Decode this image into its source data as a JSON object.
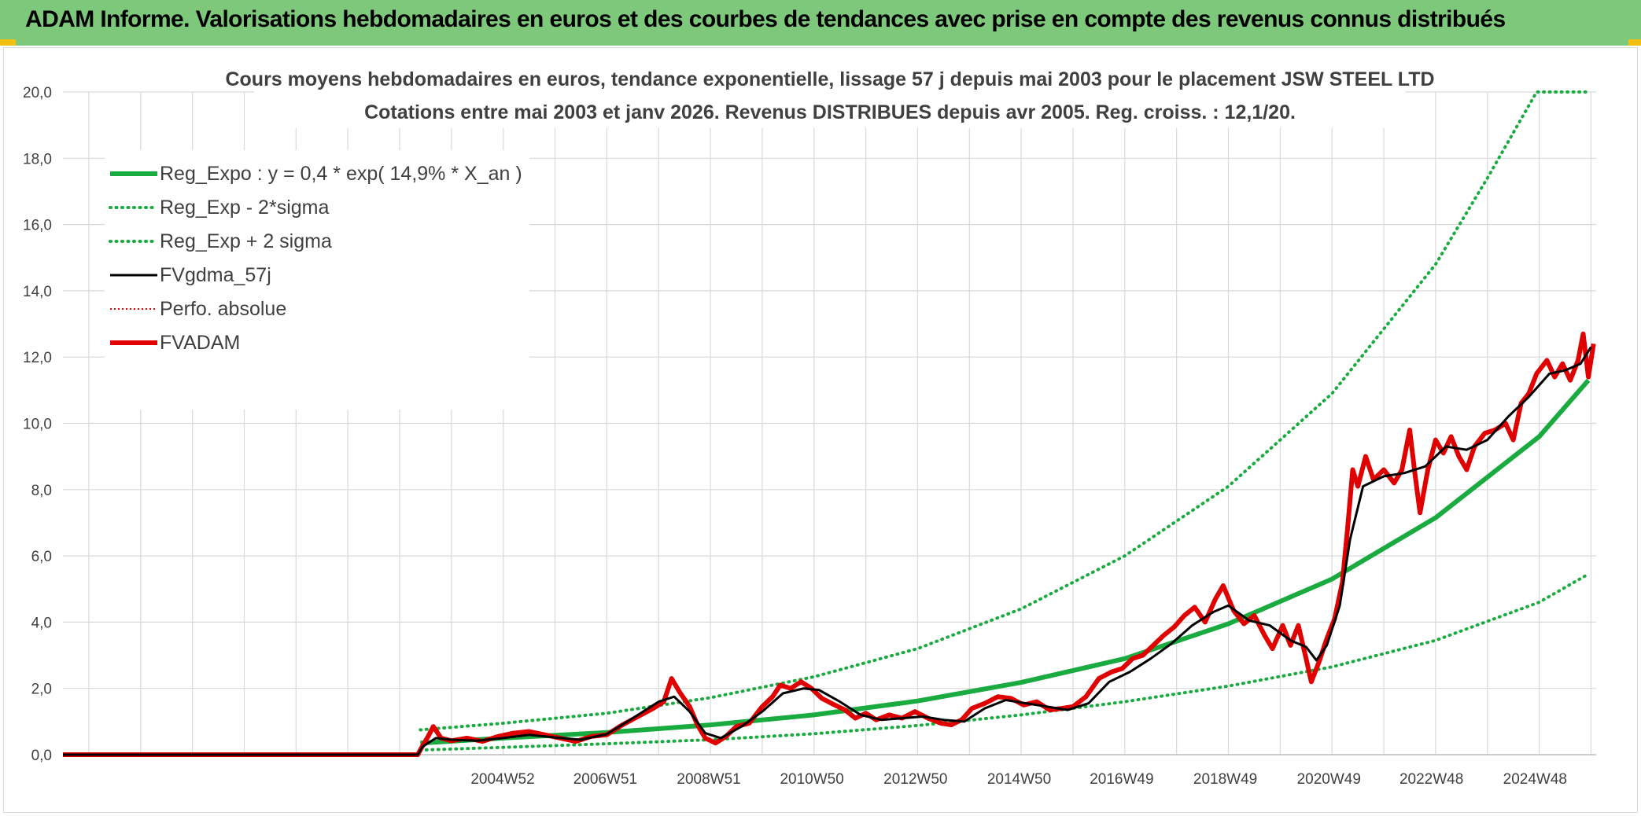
{
  "banner": {
    "title": "ADAM Informe. Valorisations hebdomadaires en euros et des courbes de tendances avec prise en compte des revenus connus distribués",
    "background": "#7dc87a"
  },
  "chart_data": {
    "type": "line",
    "title": [
      "Cours moyens hebdomadaires en euros, tendance exponentielle, lissage 57 j depuis mai 2003 pour le placement JSW STEEL LTD",
      "Cotations entre mai 2003 et janv 2026. Revenus DISTRIBUES depuis avr 2005. Reg. croiss. : 12,1/20."
    ],
    "ylim": [
      0,
      20
    ],
    "y_ticks": [
      "0,0",
      "2,0",
      "4,0",
      "6,0",
      "8,0",
      "10,0",
      "12,0",
      "14,0",
      "16,0",
      "18,0",
      "20,0"
    ],
    "x_range": [
      1996.5,
      2026.1
    ],
    "x_tick_labels": [
      {
        "label": "2004W52",
        "x": 2004.99
      },
      {
        "label": "2006W51",
        "x": 2006.97
      },
      {
        "label": "2008W51",
        "x": 2008.97
      },
      {
        "label": "2010W50",
        "x": 2010.96
      },
      {
        "label": "2012W50",
        "x": 2012.96
      },
      {
        "label": "2014W50",
        "x": 2014.96
      },
      {
        "label": "2016W49",
        "x": 2016.94
      },
      {
        "label": "2018W49",
        "x": 2018.94
      },
      {
        "label": "2020W49",
        "x": 2020.94
      },
      {
        "label": "2022W48",
        "x": 2022.92
      },
      {
        "label": "2024W48",
        "x": 2024.92
      }
    ],
    "grid": true,
    "legend": {
      "position": "top-left",
      "entries": [
        {
          "name": "Reg_Expo : y = 0,4 * exp( 14,9% *  X_an )",
          "color": "#1aab40",
          "style": "solid-thick"
        },
        {
          "name": "Reg_Exp - 2*sigma",
          "color": "#1aab40",
          "style": "dotted"
        },
        {
          "name": "Reg_Exp + 2 sigma",
          "color": "#1aab40",
          "style": "dotted"
        },
        {
          "name": "FVgdma_57j",
          "color": "#000000",
          "style": "solid"
        },
        {
          "name": "Perfo. absolue",
          "color": "#e00000",
          "style": "dotted-thin"
        },
        {
          "name": "FVADAM",
          "color": "#e00000",
          "style": "solid-thick"
        }
      ]
    },
    "series": [
      {
        "name": "Reg_Expo : y = 0,4 * exp( 14,9% *  X_an )",
        "color": "#1aab40",
        "points": [
          [
            2003.4,
            0.35
          ],
          [
            2005,
            0.5
          ],
          [
            2007,
            0.67
          ],
          [
            2009,
            0.9
          ],
          [
            2011,
            1.2
          ],
          [
            2013,
            1.62
          ],
          [
            2015,
            2.18
          ],
          [
            2017,
            2.9
          ],
          [
            2019,
            3.95
          ],
          [
            2021,
            5.3
          ],
          [
            2023,
            7.15
          ],
          [
            2025,
            9.6
          ],
          [
            2025.95,
            11.3
          ]
        ]
      },
      {
        "name": "Reg_Exp - 2*sigma",
        "color": "#1aab40",
        "points": [
          [
            2003.4,
            0.14
          ],
          [
            2005,
            0.22
          ],
          [
            2007,
            0.33
          ],
          [
            2009,
            0.45
          ],
          [
            2011,
            0.63
          ],
          [
            2013,
            0.88
          ],
          [
            2015,
            1.2
          ],
          [
            2017,
            1.6
          ],
          [
            2019,
            2.07
          ],
          [
            2021,
            2.65
          ],
          [
            2023,
            3.45
          ],
          [
            2025,
            4.6
          ],
          [
            2025.95,
            5.45
          ]
        ]
      },
      {
        "name": "Reg_Exp + 2 sigma",
        "color": "#1aab40",
        "points": [
          [
            2003.4,
            0.75
          ],
          [
            2005,
            0.95
          ],
          [
            2007,
            1.25
          ],
          [
            2009,
            1.72
          ],
          [
            2011,
            2.35
          ],
          [
            2013,
            3.2
          ],
          [
            2015,
            4.4
          ],
          [
            2017,
            6.0
          ],
          [
            2019,
            8.1
          ],
          [
            2021,
            10.9
          ],
          [
            2023,
            14.8
          ],
          [
            2024.0,
            17.4
          ],
          [
            2024.95,
            20.0
          ],
          [
            2025.95,
            20.0
          ]
        ]
      },
      {
        "name": "FVgdma_57j",
        "color": "#000000",
        "points": [
          [
            1996.5,
            0
          ],
          [
            2003.35,
            0
          ],
          [
            2003.45,
            0.25
          ],
          [
            2003.7,
            0.5
          ],
          [
            2004,
            0.45
          ],
          [
            2004.5,
            0.42
          ],
          [
            2005,
            0.5
          ],
          [
            2005.5,
            0.6
          ],
          [
            2006,
            0.52
          ],
          [
            2006.5,
            0.45
          ],
          [
            2007,
            0.62
          ],
          [
            2007.5,
            1.1
          ],
          [
            2008,
            1.6
          ],
          [
            2008.3,
            1.75
          ],
          [
            2008.6,
            1.3
          ],
          [
            2008.9,
            0.65
          ],
          [
            2009.2,
            0.5
          ],
          [
            2009.6,
            0.85
          ],
          [
            2010,
            1.3
          ],
          [
            2010.4,
            1.85
          ],
          [
            2010.8,
            2.0
          ],
          [
            2011.1,
            1.95
          ],
          [
            2011.5,
            1.6
          ],
          [
            2011.9,
            1.2
          ],
          [
            2012.3,
            1.05
          ],
          [
            2012.7,
            1.1
          ],
          [
            2013.1,
            1.15
          ],
          [
            2013.5,
            1.05
          ],
          [
            2013.9,
            1.0
          ],
          [
            2014.3,
            1.4
          ],
          [
            2014.7,
            1.65
          ],
          [
            2015.1,
            1.55
          ],
          [
            2015.5,
            1.45
          ],
          [
            2015.9,
            1.35
          ],
          [
            2016.3,
            1.55
          ],
          [
            2016.7,
            2.2
          ],
          [
            2017.1,
            2.5
          ],
          [
            2017.5,
            2.9
          ],
          [
            2017.9,
            3.35
          ],
          [
            2018.3,
            3.9
          ],
          [
            2018.7,
            4.3
          ],
          [
            2019.0,
            4.5
          ],
          [
            2019.4,
            4.05
          ],
          [
            2019.8,
            3.9
          ],
          [
            2020.2,
            3.45
          ],
          [
            2020.5,
            3.25
          ],
          [
            2020.7,
            2.85
          ],
          [
            2020.9,
            3.3
          ],
          [
            2021.15,
            4.5
          ],
          [
            2021.35,
            6.5
          ],
          [
            2021.6,
            8.1
          ],
          [
            2022.0,
            8.4
          ],
          [
            2022.4,
            8.5
          ],
          [
            2022.8,
            8.7
          ],
          [
            2023.2,
            9.3
          ],
          [
            2023.6,
            9.2
          ],
          [
            2024.0,
            9.5
          ],
          [
            2024.4,
            10.2
          ],
          [
            2024.8,
            10.8
          ],
          [
            2025.2,
            11.5
          ],
          [
            2025.5,
            11.6
          ],
          [
            2025.8,
            11.8
          ],
          [
            2026.0,
            12.3
          ]
        ]
      },
      {
        "name": "FVADAM",
        "color": "#e00000",
        "points": [
          [
            1996.5,
            0
          ],
          [
            2003.35,
            0
          ],
          [
            2003.42,
            0.2
          ],
          [
            2003.55,
            0.55
          ],
          [
            2003.65,
            0.85
          ],
          [
            2003.8,
            0.5
          ],
          [
            2004,
            0.42
          ],
          [
            2004.3,
            0.5
          ],
          [
            2004.6,
            0.4
          ],
          [
            2004.9,
            0.55
          ],
          [
            2005.2,
            0.65
          ],
          [
            2005.5,
            0.7
          ],
          [
            2005.8,
            0.6
          ],
          [
            2006.1,
            0.5
          ],
          [
            2006.4,
            0.4
          ],
          [
            2006.7,
            0.55
          ],
          [
            2007,
            0.6
          ],
          [
            2007.3,
            0.9
          ],
          [
            2007.6,
            1.15
          ],
          [
            2007.9,
            1.4
          ],
          [
            2008.1,
            1.6
          ],
          [
            2008.25,
            2.3
          ],
          [
            2008.4,
            1.9
          ],
          [
            2008.6,
            1.45
          ],
          [
            2008.75,
            0.9
          ],
          [
            2008.9,
            0.5
          ],
          [
            2009.1,
            0.35
          ],
          [
            2009.3,
            0.55
          ],
          [
            2009.5,
            0.85
          ],
          [
            2009.75,
            0.95
          ],
          [
            2010.0,
            1.45
          ],
          [
            2010.2,
            1.75
          ],
          [
            2010.35,
            2.1
          ],
          [
            2010.55,
            2.0
          ],
          [
            2010.75,
            2.2
          ],
          [
            2010.95,
            2.0
          ],
          [
            2011.15,
            1.7
          ],
          [
            2011.4,
            1.5
          ],
          [
            2011.6,
            1.35
          ],
          [
            2011.8,
            1.1
          ],
          [
            2012.0,
            1.25
          ],
          [
            2012.2,
            1.05
          ],
          [
            2012.45,
            1.2
          ],
          [
            2012.7,
            1.1
          ],
          [
            2012.95,
            1.3
          ],
          [
            2013.2,
            1.1
          ],
          [
            2013.45,
            0.95
          ],
          [
            2013.65,
            0.9
          ],
          [
            2013.85,
            1.05
          ],
          [
            2014.05,
            1.4
          ],
          [
            2014.3,
            1.55
          ],
          [
            2014.55,
            1.75
          ],
          [
            2014.8,
            1.7
          ],
          [
            2015.05,
            1.5
          ],
          [
            2015.3,
            1.6
          ],
          [
            2015.55,
            1.35
          ],
          [
            2015.8,
            1.4
          ],
          [
            2016.0,
            1.45
          ],
          [
            2016.25,
            1.75
          ],
          [
            2016.5,
            2.3
          ],
          [
            2016.75,
            2.5
          ],
          [
            2016.95,
            2.6
          ],
          [
            2017.15,
            2.9
          ],
          [
            2017.35,
            3.0
          ],
          [
            2017.55,
            3.3
          ],
          [
            2017.75,
            3.6
          ],
          [
            2017.95,
            3.85
          ],
          [
            2018.15,
            4.2
          ],
          [
            2018.35,
            4.45
          ],
          [
            2018.55,
            4.0
          ],
          [
            2018.75,
            4.7
          ],
          [
            2018.9,
            5.1
          ],
          [
            2019.1,
            4.35
          ],
          [
            2019.3,
            3.95
          ],
          [
            2019.5,
            4.2
          ],
          [
            2019.7,
            3.6
          ],
          [
            2019.85,
            3.2
          ],
          [
            2020.05,
            3.9
          ],
          [
            2020.2,
            3.3
          ],
          [
            2020.35,
            3.9
          ],
          [
            2020.5,
            2.9
          ],
          [
            2020.6,
            2.2
          ],
          [
            2020.75,
            2.8
          ],
          [
            2020.9,
            3.5
          ],
          [
            2021.05,
            4.1
          ],
          [
            2021.2,
            5.2
          ],
          [
            2021.3,
            6.8
          ],
          [
            2021.4,
            8.6
          ],
          [
            2021.5,
            8.1
          ],
          [
            2021.65,
            9.0
          ],
          [
            2021.8,
            8.3
          ],
          [
            2022.0,
            8.6
          ],
          [
            2022.2,
            8.2
          ],
          [
            2022.35,
            8.6
          ],
          [
            2022.5,
            9.8
          ],
          [
            2022.6,
            8.5
          ],
          [
            2022.7,
            7.3
          ],
          [
            2022.85,
            8.6
          ],
          [
            2023.0,
            9.5
          ],
          [
            2023.15,
            9.1
          ],
          [
            2023.3,
            9.6
          ],
          [
            2023.45,
            9.0
          ],
          [
            2023.6,
            8.6
          ],
          [
            2023.75,
            9.3
          ],
          [
            2023.95,
            9.7
          ],
          [
            2024.15,
            9.8
          ],
          [
            2024.35,
            10.0
          ],
          [
            2024.5,
            9.5
          ],
          [
            2024.65,
            10.6
          ],
          [
            2024.8,
            10.9
          ],
          [
            2024.95,
            11.5
          ],
          [
            2025.15,
            11.9
          ],
          [
            2025.3,
            11.4
          ],
          [
            2025.45,
            11.8
          ],
          [
            2025.6,
            11.3
          ],
          [
            2025.75,
            11.9
          ],
          [
            2025.85,
            12.7
          ],
          [
            2025.95,
            11.4
          ],
          [
            2026.05,
            12.4
          ]
        ]
      }
    ]
  }
}
